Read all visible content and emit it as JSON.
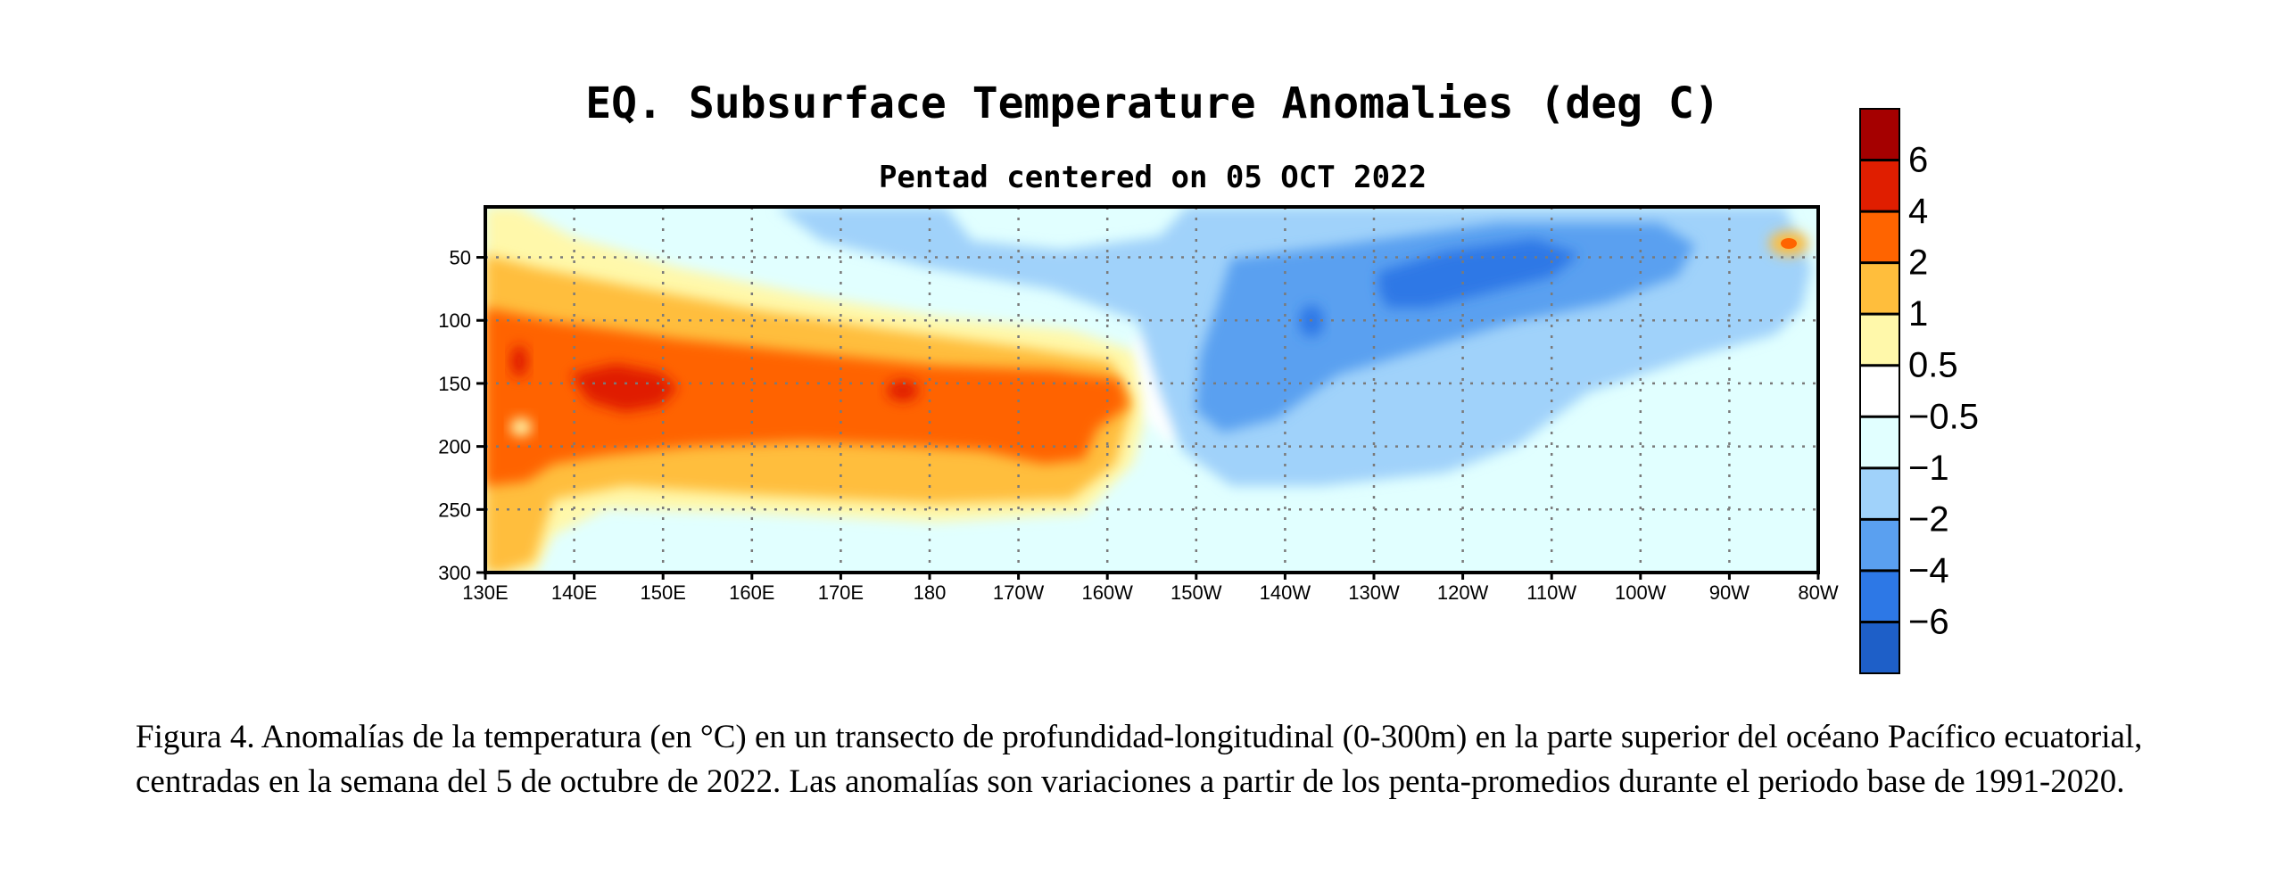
{
  "chart_data": {
    "type": "heatmap",
    "title": "EQ. Subsurface Temperature Anomalies (deg C)",
    "subtitle": "Pentad centered on 05 OCT 2022",
    "x_tick_labels": [
      "130E",
      "140E",
      "150E",
      "160E",
      "170E",
      "180",
      "170W",
      "160W",
      "150W",
      "140W",
      "130W",
      "120W",
      "110W",
      "100W",
      "90W",
      "80W"
    ],
    "x_ticks_lon": [
      130,
      140,
      150,
      160,
      170,
      180,
      190,
      200,
      210,
      220,
      230,
      240,
      250,
      260,
      270,
      280
    ],
    "xlim": [
      130,
      280
    ],
    "y_tick_labels": [
      "50",
      "100",
      "150",
      "200",
      "250",
      "300"
    ],
    "y_ticks_depth": [
      50,
      100,
      150,
      200,
      250,
      300
    ],
    "ylim": [
      300,
      10
    ],
    "grid": true,
    "colorbar": {
      "labels": [
        "6",
        "4",
        "2",
        "1",
        "0.5",
        "−0.5",
        "−1",
        "−2",
        "−4",
        "−6"
      ],
      "levels": [
        6,
        4,
        2,
        1,
        0.5,
        -0.5,
        -1,
        -2,
        -4,
        -6
      ],
      "colors": [
        "#a50000",
        "#e01e00",
        "#ff6400",
        "#ffbe3c",
        "#fff8aa",
        "#ffffff",
        "#e1ffff",
        "#a0d2fa",
        "#5aa0f0",
        "#2d78e6",
        "#1e5fc8"
      ]
    },
    "anomaly_features": [
      {
        "lon": 150,
        "depth": 150,
        "value": 4.5
      },
      {
        "lon": 136,
        "depth": 130,
        "value": 4.2
      },
      {
        "lon": 178,
        "depth": 150,
        "value": 4.3
      },
      {
        "lon": 165,
        "depth": 160,
        "value": 2.8
      },
      {
        "lon": 195,
        "depth": 170,
        "value": 2.5
      },
      {
        "lon": 140,
        "depth": 240,
        "value": 1.2
      },
      {
        "lon": 230,
        "depth": 80,
        "value": -2.6
      },
      {
        "lon": 225,
        "depth": 90,
        "value": -2.4
      },
      {
        "lon": 240,
        "depth": 60,
        "value": -2.3
      },
      {
        "lon": 250,
        "depth": 55,
        "value": -2.2
      },
      {
        "lon": 225,
        "depth": 150,
        "value": -1.8
      },
      {
        "lon": 215,
        "depth": 40,
        "value": -0.8
      },
      {
        "lon": 265,
        "depth": 120,
        "value": -0.7
      },
      {
        "lon": 278,
        "depth": 40,
        "value": 3.0
      }
    ]
  },
  "caption": "Figura 4. Anomalías de la temperatura (en °C) en un transecto de profundidad-longitudinal (0-300m) en la parte superior del océano Pacífico ecuatorial, centradas en la semana del 5 de octubre de 2022. Las anomalías son variaciones a partir de los penta-promedios durante el periodo base de 1991-2020."
}
